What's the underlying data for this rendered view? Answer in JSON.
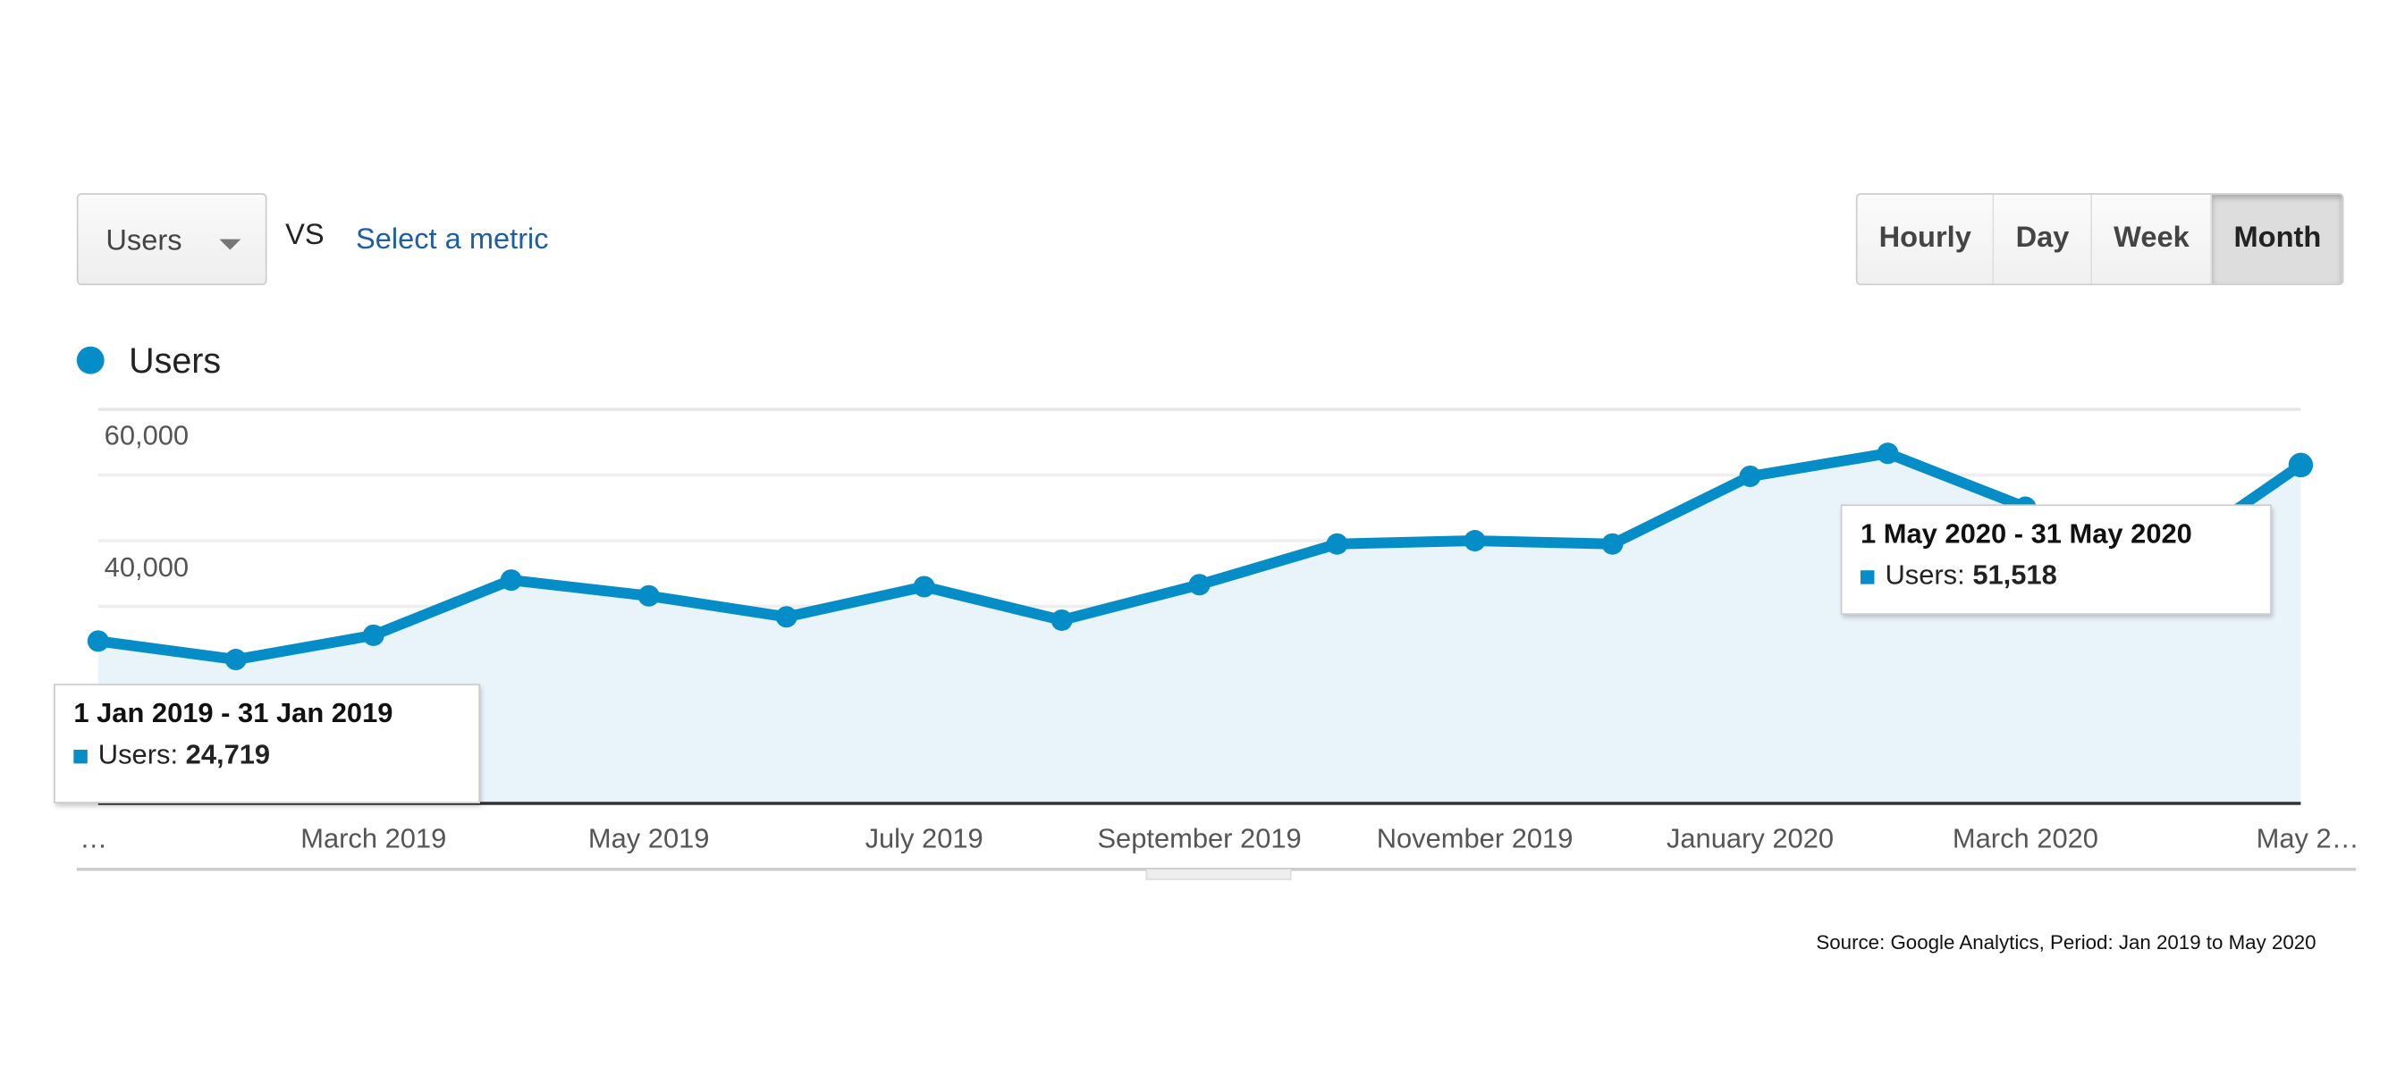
{
  "controls": {
    "metric_dropdown": "Users",
    "vs_label": "VS",
    "select_metric": "Select a metric",
    "granularity": [
      {
        "label": "Hourly",
        "selected": false
      },
      {
        "label": "Day",
        "selected": false
      },
      {
        "label": "Week",
        "selected": false
      },
      {
        "label": "Month",
        "selected": true
      }
    ]
  },
  "colors": {
    "line": "#058dc7",
    "fill": "#e9f3fa"
  },
  "chart_data": {
    "type": "area",
    "series": [
      {
        "name": "Users",
        "values": [
          24719,
          21900,
          25600,
          34000,
          31600,
          28400,
          33000,
          27900,
          33300,
          39500,
          40000,
          39500,
          49800,
          53300,
          45100,
          37000,
          51518
        ]
      }
    ],
    "x": [
      "Jan 2019",
      "Feb 2019",
      "Mar 2019",
      "Apr 2019",
      "May 2019",
      "Jun 2019",
      "Jul 2019",
      "Aug 2019",
      "Sep 2019",
      "Oct 2019",
      "Nov 2019",
      "Dec 2019",
      "Jan 2020",
      "Feb 2020",
      "Mar 2020",
      "Apr 2020",
      "May 2020"
    ],
    "x_tick_labels": [
      "…",
      "March 2019",
      "May 2019",
      "July 2019",
      "September 2019",
      "November 2019",
      "January 2020",
      "March 2020",
      "May 2…"
    ],
    "y_tick_labels": [
      "60,000",
      "40,000"
    ],
    "ylim": [
      0,
      60000
    ],
    "grid": true,
    "legend": "top-left",
    "tooltips": [
      {
        "title": "1 Jan 2019 - 31 Jan 2019",
        "label": "Users:",
        "value": "24,719"
      },
      {
        "title": "1 May 2020 - 31 May 2020",
        "label": "Users:",
        "value": "51,518"
      }
    ]
  },
  "source": "Source: Google Analytics, Period: Jan 2019 to May 2020"
}
